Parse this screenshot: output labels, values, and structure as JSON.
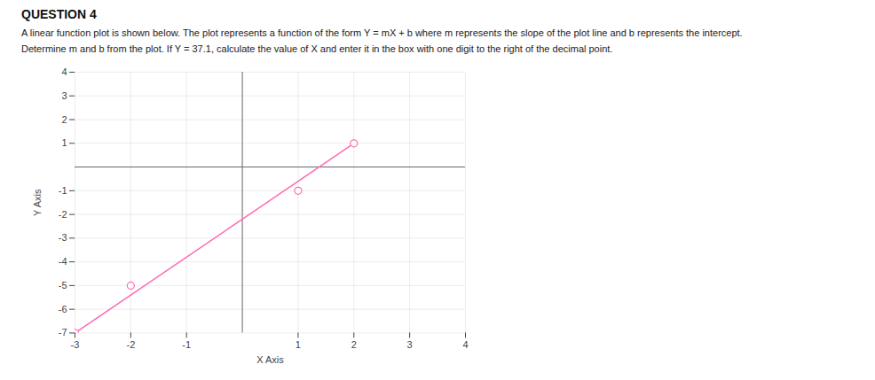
{
  "chart_data": {
    "type": "line",
    "title": "QUESTION 4",
    "annotations": [
      "A linear function plot is shown below. The plot represents a function of the form Y = mX + b where m represents the slope of the plot line and b represents the intercept.",
      "Determine m and b from the plot. If Y = 37.1, calculate the value of X and enter it in the box with one digit to the right of the decimal point."
    ],
    "x_label": "X Axis",
    "y_label": "Y Axis",
    "xlim": [
      -3,
      4
    ],
    "ylim": [
      -7,
      4
    ],
    "xticks": [
      -3,
      -2,
      -1,
      1,
      2,
      3,
      4
    ],
    "yticks": [
      -7,
      -6,
      -5,
      -4,
      -3,
      -2,
      -1,
      1,
      2,
      3,
      4
    ],
    "grid": true,
    "series": [
      {
        "type": "line",
        "color": "#FF69B4",
        "line_style": "solid",
        "x": [
          -3,
          2
        ],
        "values": [
          -7,
          1
        ]
      },
      {
        "type": "scatter",
        "color": "#FF69B4",
        "marker": "open circle",
        "x": [
          -3,
          -2,
          1,
          2
        ],
        "values": [
          -7,
          -5,
          -1,
          1
        ]
      }
    ]
  }
}
